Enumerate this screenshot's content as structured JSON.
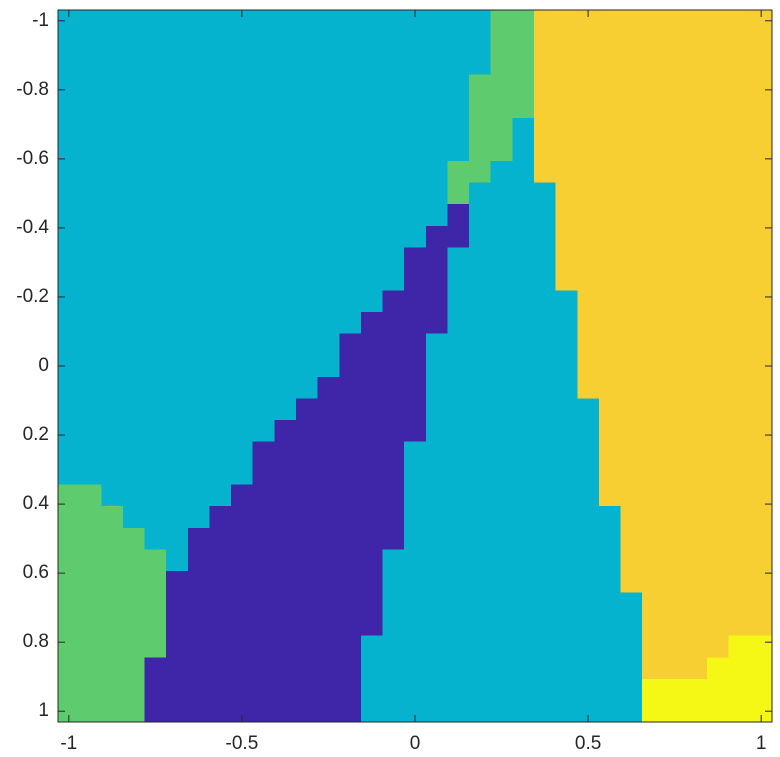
{
  "chart_data": {
    "type": "heatmap",
    "xlim": [
      -1.03125,
      1.03125
    ],
    "ylim": [
      -1.03125,
      1.03125
    ],
    "y_reversed": true,
    "xticks": [
      -1,
      -0.5,
      0,
      0.5,
      1
    ],
    "yticks": [
      -1,
      -0.8,
      -0.6,
      -0.4,
      -0.2,
      0,
      0.2,
      0.4,
      0.6,
      0.8,
      1
    ],
    "clim": [
      1,
      5
    ],
    "colormap": [
      "#3f26a8",
      "#05b3ce",
      "#5ecb6e",
      "#f8cf33",
      "#f5f714"
    ],
    "z": [
      [
        2,
        2,
        2,
        2,
        2,
        2,
        2,
        2,
        2,
        2,
        2,
        2,
        2,
        2,
        2,
        2,
        2,
        2,
        2,
        2,
        3,
        3,
        4,
        4,
        4,
        4,
        4,
        4,
        4,
        4,
        4,
        4,
        4
      ],
      [
        2,
        2,
        2,
        2,
        2,
        2,
        2,
        2,
        2,
        2,
        2,
        2,
        2,
        2,
        2,
        2,
        2,
        2,
        2,
        2,
        3,
        3,
        4,
        4,
        4,
        4,
        4,
        4,
        4,
        4,
        4,
        4,
        4
      ],
      [
        2,
        2,
        2,
        2,
        2,
        2,
        2,
        2,
        2,
        2,
        2,
        2,
        2,
        2,
        2,
        2,
        2,
        2,
        2,
        2,
        3,
        3,
        4,
        4,
        4,
        4,
        4,
        4,
        4,
        4,
        4,
        4,
        4
      ],
      [
        2,
        2,
        2,
        2,
        2,
        2,
        2,
        2,
        2,
        2,
        2,
        2,
        2,
        2,
        2,
        2,
        2,
        2,
        2,
        3,
        3,
        3,
        4,
        4,
        4,
        4,
        4,
        4,
        4,
        4,
        4,
        4,
        4
      ],
      [
        2,
        2,
        2,
        2,
        2,
        2,
        2,
        2,
        2,
        2,
        2,
        2,
        2,
        2,
        2,
        2,
        2,
        2,
        2,
        3,
        3,
        3,
        4,
        4,
        4,
        4,
        4,
        4,
        4,
        4,
        4,
        4,
        4
      ],
      [
        2,
        2,
        2,
        2,
        2,
        2,
        2,
        2,
        2,
        2,
        2,
        2,
        2,
        2,
        2,
        2,
        2,
        2,
        2,
        3,
        3,
        2,
        4,
        4,
        4,
        4,
        4,
        4,
        4,
        4,
        4,
        4,
        4
      ],
      [
        2,
        2,
        2,
        2,
        2,
        2,
        2,
        2,
        2,
        2,
        2,
        2,
        2,
        2,
        2,
        2,
        2,
        2,
        2,
        3,
        3,
        2,
        4,
        4,
        4,
        4,
        4,
        4,
        4,
        4,
        4,
        4,
        4
      ],
      [
        2,
        2,
        2,
        2,
        2,
        2,
        2,
        2,
        2,
        2,
        2,
        2,
        2,
        2,
        2,
        2,
        2,
        2,
        3,
        3,
        2,
        2,
        4,
        4,
        4,
        4,
        4,
        4,
        4,
        4,
        4,
        4,
        4
      ],
      [
        2,
        2,
        2,
        2,
        2,
        2,
        2,
        2,
        2,
        2,
        2,
        2,
        2,
        2,
        2,
        2,
        2,
        2,
        3,
        2,
        2,
        2,
        2,
        4,
        4,
        4,
        4,
        4,
        4,
        4,
        4,
        4,
        4
      ],
      [
        2,
        2,
        2,
        2,
        2,
        2,
        2,
        2,
        2,
        2,
        2,
        2,
        2,
        2,
        2,
        2,
        2,
        2,
        1,
        2,
        2,
        2,
        2,
        4,
        4,
        4,
        4,
        4,
        4,
        4,
        4,
        4,
        4
      ],
      [
        2,
        2,
        2,
        2,
        2,
        2,
        2,
        2,
        2,
        2,
        2,
        2,
        2,
        2,
        2,
        2,
        2,
        1,
        1,
        2,
        2,
        2,
        2,
        4,
        4,
        4,
        4,
        4,
        4,
        4,
        4,
        4,
        4
      ],
      [
        2,
        2,
        2,
        2,
        2,
        2,
        2,
        2,
        2,
        2,
        2,
        2,
        2,
        2,
        2,
        2,
        1,
        1,
        2,
        2,
        2,
        2,
        2,
        4,
        4,
        4,
        4,
        4,
        4,
        4,
        4,
        4,
        4
      ],
      [
        2,
        2,
        2,
        2,
        2,
        2,
        2,
        2,
        2,
        2,
        2,
        2,
        2,
        2,
        2,
        2,
        1,
        1,
        2,
        2,
        2,
        2,
        2,
        4,
        4,
        4,
        4,
        4,
        4,
        4,
        4,
        4,
        4
      ],
      [
        2,
        2,
        2,
        2,
        2,
        2,
        2,
        2,
        2,
        2,
        2,
        2,
        2,
        2,
        2,
        1,
        1,
        1,
        2,
        2,
        2,
        2,
        2,
        2,
        4,
        4,
        4,
        4,
        4,
        4,
        4,
        4,
        4
      ],
      [
        2,
        2,
        2,
        2,
        2,
        2,
        2,
        2,
        2,
        2,
        2,
        2,
        2,
        2,
        1,
        1,
        1,
        1,
        2,
        2,
        2,
        2,
        2,
        2,
        4,
        4,
        4,
        4,
        4,
        4,
        4,
        4,
        4
      ],
      [
        2,
        2,
        2,
        2,
        2,
        2,
        2,
        2,
        2,
        2,
        2,
        2,
        2,
        1,
        1,
        1,
        1,
        2,
        2,
        2,
        2,
        2,
        2,
        2,
        4,
        4,
        4,
        4,
        4,
        4,
        4,
        4,
        4
      ],
      [
        2,
        2,
        2,
        2,
        2,
        2,
        2,
        2,
        2,
        2,
        2,
        2,
        2,
        1,
        1,
        1,
        1,
        2,
        2,
        2,
        2,
        2,
        2,
        2,
        4,
        4,
        4,
        4,
        4,
        4,
        4,
        4,
        4
      ],
      [
        2,
        2,
        2,
        2,
        2,
        2,
        2,
        2,
        2,
        2,
        2,
        2,
        1,
        1,
        1,
        1,
        1,
        2,
        2,
        2,
        2,
        2,
        2,
        2,
        4,
        4,
        4,
        4,
        4,
        4,
        4,
        4,
        4
      ],
      [
        2,
        2,
        2,
        2,
        2,
        2,
        2,
        2,
        2,
        2,
        2,
        1,
        1,
        1,
        1,
        1,
        1,
        2,
        2,
        2,
        2,
        2,
        2,
        2,
        2,
        4,
        4,
        4,
        4,
        4,
        4,
        4,
        4
      ],
      [
        2,
        2,
        2,
        2,
        2,
        2,
        2,
        2,
        2,
        2,
        1,
        1,
        1,
        1,
        1,
        1,
        1,
        2,
        2,
        2,
        2,
        2,
        2,
        2,
        2,
        4,
        4,
        4,
        4,
        4,
        4,
        4,
        4
      ],
      [
        2,
        2,
        2,
        2,
        2,
        2,
        2,
        2,
        2,
        1,
        1,
        1,
        1,
        1,
        1,
        1,
        2,
        2,
        2,
        2,
        2,
        2,
        2,
        2,
        2,
        4,
        4,
        4,
        4,
        4,
        4,
        4,
        4
      ],
      [
        2,
        2,
        2,
        2,
        2,
        2,
        2,
        2,
        2,
        1,
        1,
        1,
        1,
        1,
        1,
        1,
        2,
        2,
        2,
        2,
        2,
        2,
        2,
        2,
        2,
        4,
        4,
        4,
        4,
        4,
        4,
        4,
        4
      ],
      [
        3,
        3,
        2,
        2,
        2,
        2,
        2,
        2,
        1,
        1,
        1,
        1,
        1,
        1,
        1,
        1,
        2,
        2,
        2,
        2,
        2,
        2,
        2,
        2,
        2,
        4,
        4,
        4,
        4,
        4,
        4,
        4,
        4
      ],
      [
        3,
        3,
        3,
        2,
        2,
        2,
        2,
        1,
        1,
        1,
        1,
        1,
        1,
        1,
        1,
        1,
        2,
        2,
        2,
        2,
        2,
        2,
        2,
        2,
        2,
        2,
        4,
        4,
        4,
        4,
        4,
        4,
        4
      ],
      [
        3,
        3,
        3,
        3,
        2,
        2,
        1,
        1,
        1,
        1,
        1,
        1,
        1,
        1,
        1,
        1,
        2,
        2,
        2,
        2,
        2,
        2,
        2,
        2,
        2,
        2,
        4,
        4,
        4,
        4,
        4,
        4,
        4
      ],
      [
        3,
        3,
        3,
        3,
        3,
        2,
        1,
        1,
        1,
        1,
        1,
        1,
        1,
        1,
        1,
        2,
        2,
        2,
        2,
        2,
        2,
        2,
        2,
        2,
        2,
        2,
        4,
        4,
        4,
        4,
        4,
        4,
        4
      ],
      [
        3,
        3,
        3,
        3,
        3,
        1,
        1,
        1,
        1,
        1,
        1,
        1,
        1,
        1,
        1,
        2,
        2,
        2,
        2,
        2,
        2,
        2,
        2,
        2,
        2,
        2,
        4,
        4,
        4,
        4,
        4,
        4,
        4
      ],
      [
        3,
        3,
        3,
        3,
        3,
        1,
        1,
        1,
        1,
        1,
        1,
        1,
        1,
        1,
        1,
        2,
        2,
        2,
        2,
        2,
        2,
        2,
        2,
        2,
        2,
        2,
        2,
        4,
        4,
        4,
        4,
        4,
        4
      ],
      [
        3,
        3,
        3,
        3,
        3,
        1,
        1,
        1,
        1,
        1,
        1,
        1,
        1,
        1,
        1,
        2,
        2,
        2,
        2,
        2,
        2,
        2,
        2,
        2,
        2,
        2,
        2,
        4,
        4,
        4,
        4,
        4,
        4
      ],
      [
        3,
        3,
        3,
        3,
        3,
        1,
        1,
        1,
        1,
        1,
        1,
        1,
        1,
        1,
        2,
        2,
        2,
        2,
        2,
        2,
        2,
        2,
        2,
        2,
        2,
        2,
        2,
        4,
        4,
        4,
        4,
        5,
        5
      ],
      [
        3,
        3,
        3,
        3,
        1,
        1,
        1,
        1,
        1,
        1,
        1,
        1,
        1,
        1,
        2,
        2,
        2,
        2,
        2,
        2,
        2,
        2,
        2,
        2,
        2,
        2,
        2,
        4,
        4,
        4,
        5,
        5,
        5
      ],
      [
        3,
        3,
        3,
        3,
        1,
        1,
        1,
        1,
        1,
        1,
        1,
        1,
        1,
        1,
        2,
        2,
        2,
        2,
        2,
        2,
        2,
        2,
        2,
        2,
        2,
        2,
        2,
        5,
        5,
        5,
        5,
        5,
        5
      ],
      [
        3,
        3,
        3,
        3,
        1,
        1,
        1,
        1,
        1,
        1,
        1,
        1,
        1,
        1,
        2,
        2,
        2,
        2,
        2,
        2,
        2,
        2,
        2,
        2,
        2,
        2,
        2,
        5,
        5,
        5,
        5,
        5,
        5
      ]
    ]
  }
}
